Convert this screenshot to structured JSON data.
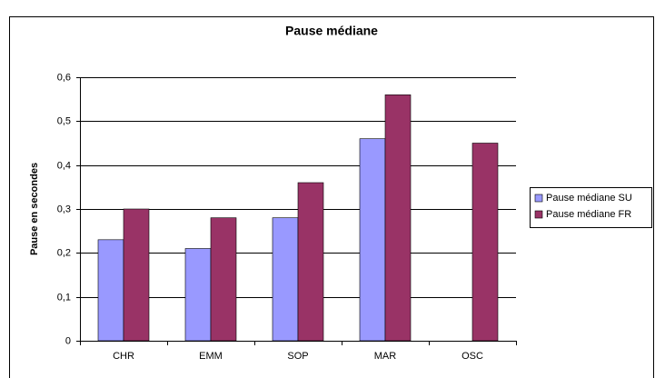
{
  "chart_data": {
    "type": "bar",
    "title": "Pause   médiane",
    "ylabel": "Pause  en  secondes",
    "categories": [
      "CHR",
      "EMM",
      "SOP",
      "MAR",
      "OSC"
    ],
    "series": [
      {
        "name": "Pause médiane SU",
        "color": "#9999ff",
        "values": [
          0.23,
          0.21,
          0.28,
          0.46,
          null
        ]
      },
      {
        "name": "Pause médiane FR",
        "color": "#993366",
        "values": [
          0.3,
          0.28,
          0.36,
          0.56,
          0.45
        ]
      }
    ],
    "ylim": [
      0,
      0.6
    ],
    "yticks": [
      0,
      {
        "value": 0.1,
        "label": "0,1"
      },
      {
        "value": 0.2,
        "label": "0,2"
      },
      {
        "value": 0.3,
        "label": "0,3"
      },
      {
        "value": 0.4,
        "label": "0,4"
      },
      {
        "value": 0.5,
        "label": "0,5"
      },
      {
        "value": 0.6,
        "label": "0,6"
      }
    ],
    "grid": true
  }
}
